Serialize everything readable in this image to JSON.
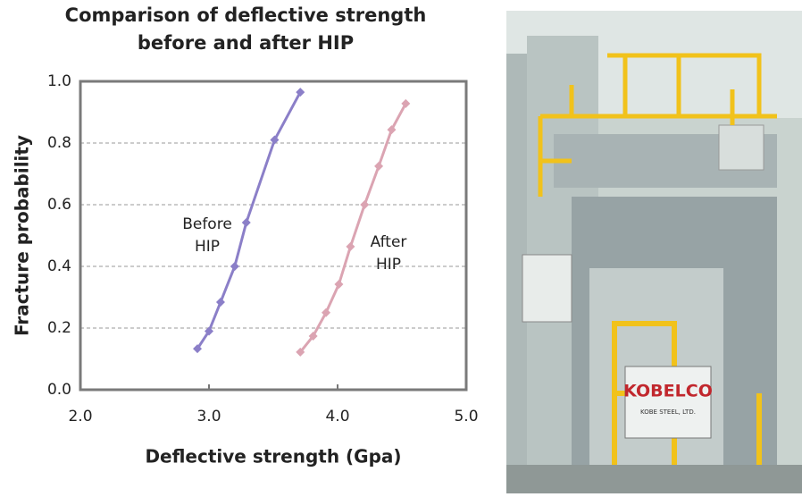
{
  "chart_data": {
    "type": "line",
    "title": [
      "Comparison of deflective strength",
      "before and after HIP"
    ],
    "xlabel": "Deflective strength (Gpa)",
    "ylabel": "Fracture probability",
    "xlim": [
      2,
      5
    ],
    "ylim": [
      0,
      1
    ],
    "xticks": [
      {
        "value": 2,
        "label": "2.0"
      },
      {
        "value": 3,
        "label": "3.0"
      },
      {
        "value": 4,
        "label": "4.0"
      },
      {
        "value": 5,
        "label": "5.0"
      }
    ],
    "yticks": [
      {
        "value": 0,
        "label": "0.0"
      },
      0.2,
      0.4,
      0.6,
      0.8,
      {
        "value": 1,
        "label": "1.0"
      }
    ],
    "grid": true,
    "series": [
      {
        "label_lines": [
          "Before",
          "HIP"
        ],
        "color": "#8b7fc8",
        "x": [
          2.91,
          3.0,
          3.09,
          3.2,
          3.29,
          3.51,
          3.71
        ],
        "values": [
          0.133,
          0.19,
          0.284,
          0.4,
          0.542,
          0.81,
          0.965
        ]
      },
      {
        "label_lines": [
          "After",
          "HIP"
        ],
        "color": "#dba4b2",
        "x": [
          3.71,
          3.81,
          3.91,
          4.01,
          4.1,
          4.21,
          4.32,
          4.42,
          4.53
        ],
        "values": [
          0.122,
          0.174,
          0.25,
          0.342,
          0.464,
          0.6,
          0.725,
          0.843,
          0.928
        ]
      }
    ]
  },
  "photo": {
    "sign_brand": "KOBELCO",
    "sign_company": "KOBE STEEL, LTD."
  }
}
